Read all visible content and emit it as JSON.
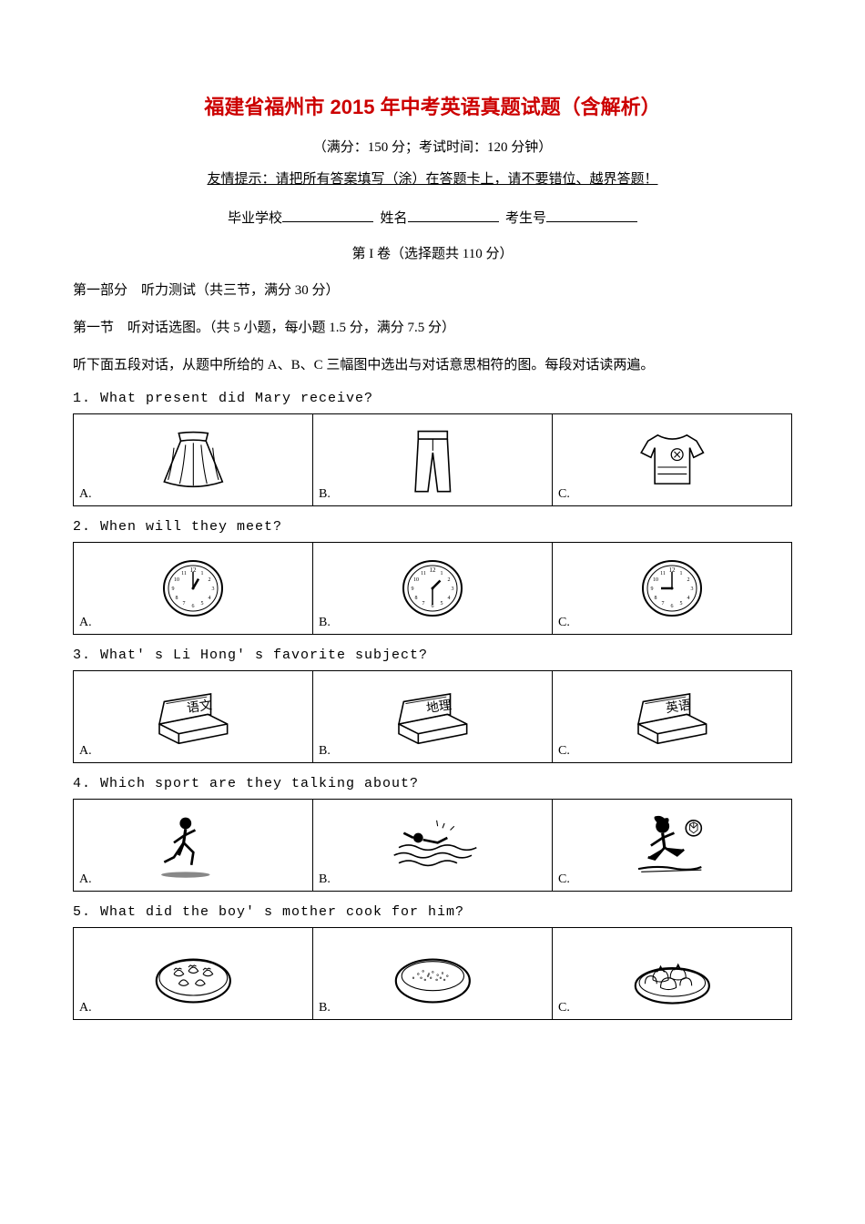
{
  "title": "福建省福州市 2015 年中考英语真题试题（含解析）",
  "subtitle": "（满分：150 分；考试时间：120 分钟）",
  "hint": "友情提示：请把所有答案填写（涂）在答题卡上，请不要错位、越界答题！",
  "info": {
    "school_label": "毕业学校",
    "name_label": "姓名",
    "id_label": "考生号"
  },
  "volume": "第 I 卷（选择题共 110 分）",
  "part1_title": "第一部分　听力测试（共三节，满分 30 分）",
  "section1_title": "第一节　听对话选图。（共 5 小题，每小题 1.5 分，满分 7.5 分）",
  "section1_instruction": "听下面五段对话，从题中所给的 A、B、C 三幅图中选出与对话意思相符的图。每段对话读两遍。",
  "questions": [
    {
      "num": "1.",
      "text": "What present did Mary receive?",
      "options": [
        {
          "label": "A.",
          "img": "skirt"
        },
        {
          "label": "B.",
          "img": "trousers"
        },
        {
          "label": "C.",
          "img": "tshirt"
        }
      ]
    },
    {
      "num": "2.",
      "text": "When will they meet?",
      "options": [
        {
          "label": "A.",
          "img": "clock1"
        },
        {
          "label": "B.",
          "img": "clock2"
        },
        {
          "label": "C.",
          "img": "clock3"
        }
      ]
    },
    {
      "num": "3.",
      "text": "What' s Li Hong' s favorite subject?",
      "options": [
        {
          "label": "A.",
          "img": "book-yuwen"
        },
        {
          "label": "B.",
          "img": "book-dili"
        },
        {
          "label": "C.",
          "img": "book-yingyu"
        }
      ]
    },
    {
      "num": "4.",
      "text": "Which sport are they talking about?",
      "options": [
        {
          "label": "A.",
          "img": "running"
        },
        {
          "label": "B.",
          "img": "swimming"
        },
        {
          "label": "C.",
          "img": "football"
        }
      ]
    },
    {
      "num": "5.",
      "text": "What did the boy' s mother cook for him?",
      "options": [
        {
          "label": "A.",
          "img": "dumplings"
        },
        {
          "label": "B.",
          "img": "rice"
        },
        {
          "label": "C.",
          "img": "buns"
        }
      ]
    }
  ],
  "book_labels": {
    "yuwen": "语文",
    "dili": "地理",
    "yingyu": "英语"
  },
  "colors": {
    "title": "#cc0000",
    "text": "#000000",
    "border": "#000000",
    "bg": "#ffffff"
  }
}
